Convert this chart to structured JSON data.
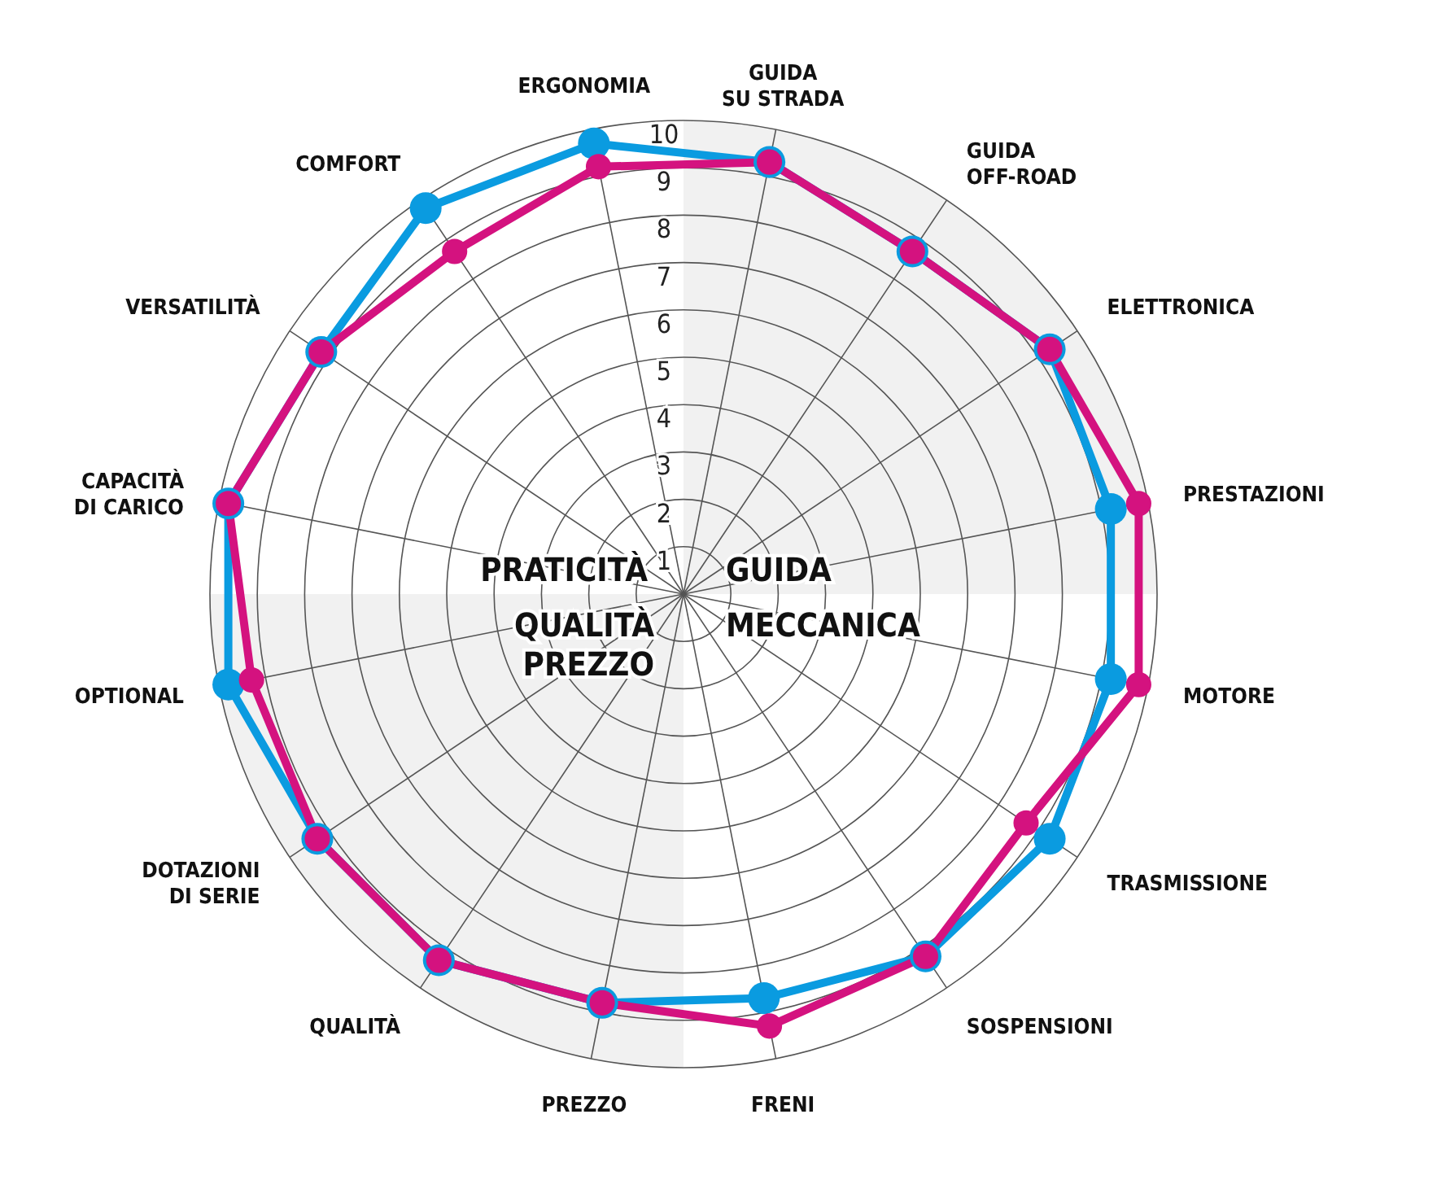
{
  "chart_data": {
    "type": "radar",
    "categories": [
      "GUIDA\nSU STRADA",
      "GUIDA\nOFF-ROAD",
      "ELETTRONICA",
      "PRESTAZIONI",
      "MOTORE",
      "TRASMISSIONE",
      "SOSPENSIONI",
      "FRENI",
      "PREZZO",
      "QUALITÀ",
      "DOTAZIONI\nDI SERIE",
      "OPTIONAL",
      "CAPACITÀ\nDI CARICO",
      "VERSATILITÀ",
      "COMFORT",
      "ERGONOMIA"
    ],
    "series": [
      {
        "color": "#0a9be0",
        "values": [
          9.3,
          8.7,
          9.3,
          9.2,
          9.2,
          9.3,
          9.2,
          8.7,
          8.8,
          9.3,
          9.3,
          9.8,
          9.8,
          9.2,
          9.8,
          9.7
        ]
      },
      {
        "color": "#d4127f",
        "values": [
          9.3,
          8.7,
          9.3,
          9.8,
          9.8,
          8.7,
          9.2,
          9.3,
          8.8,
          9.3,
          9.3,
          9.3,
          9.8,
          9.2,
          8.7,
          9.2
        ]
      }
    ],
    "ylim": [
      0,
      10
    ],
    "yticks": [
      1,
      2,
      3,
      4,
      5,
      6,
      7,
      8,
      9,
      10
    ],
    "marker": "circle",
    "legend": false,
    "annotations": [
      "PRATICITÀ",
      "GUIDA",
      "QUALITÀ\nPREZZO",
      "MECCANICA"
    ]
  }
}
